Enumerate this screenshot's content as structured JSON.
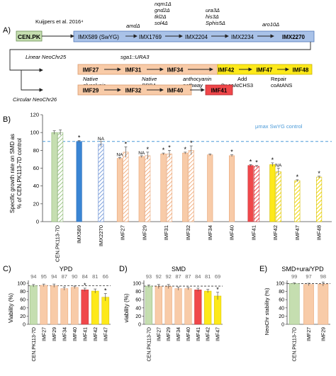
{
  "colors": {
    "green": "#c5deb0",
    "blue": "#a9c2e8",
    "blue_solid": "#3a85d4",
    "peach": "#f8cba8",
    "yellow": "#fde91a",
    "red": "#f0474a",
    "ref_line": "#4a9ad8"
  },
  "panel_a": {
    "label": "A)",
    "strains": {
      "cenpk": "CEN.PK",
      "imx589": "IMX589 (SwYG)",
      "imx1769": "IMX1769",
      "imx2204": "IMX2204",
      "imx2234": "IMX2234",
      "imx2270": "IMX2270",
      "imf27": "IMF27",
      "imf31": "IMF31",
      "imf34": "IMF34",
      "imf42": "IMF42",
      "imf47": "IMF47",
      "imf48": "IMF48",
      "imf29": "IMF29",
      "imf32": "IMF32",
      "imf40": "IMF40",
      "imf41": "IMF41"
    },
    "annotations": {
      "kuijpers": "Kuijpers et al. 2016⁴",
      "amd": "amdΔ",
      "imx2204_deletions": [
        "nqm1Δ",
        "gnd2Δ",
        "tkl2Δ",
        "sol4Δ"
      ],
      "imx2234_deletions": [
        "ura3Δ",
        "his3Δ",
        "Sphis5Δ"
      ],
      "aro10": "aro10Δ",
      "linear": "Linear NeoChr25",
      "sga1": "sga1::URA3",
      "circular": "Circular NeoChr26",
      "native_glycolysis": [
        "Native",
        "glycolysis"
      ],
      "native_ppp": [
        "Native",
        "PPPΔ"
      ],
      "anthocyanin": [
        "anthocyanin",
        "pathway"
      ],
      "add": [
        "Add",
        "8x coAtCHS3"
      ],
      "repair": [
        "Repair",
        "coAtANS"
      ]
    }
  },
  "panel_b": {
    "label": "B)",
    "ylabel": [
      "Specific growth rate on SMD as",
      "% of CEN.PK113-7D control"
    ],
    "ref_label": "μmax SwYG control",
    "ref_value": 90,
    "ylim": [
      0,
      120
    ],
    "yticks": [
      "0",
      "20",
      "40",
      "60",
      "80",
      "100",
      "120"
    ],
    "na": "NA",
    "star": "*"
  },
  "panel_c": {
    "label": "C)",
    "title": "YPD",
    "ylabel": "Viability (%)",
    "yticks": [
      "0",
      "20",
      "40",
      "60",
      "80",
      "100"
    ]
  },
  "panel_d": {
    "label": "D)",
    "title": "SMD",
    "ylabel": "viability (%)",
    "yticks": [
      "0",
      "20",
      "40",
      "60",
      "80",
      "100"
    ]
  },
  "panel_e": {
    "label": "E)",
    "title": "SMD+ura/YPD",
    "ylabel": "NeoChr stability (%)",
    "yticks": [
      "0",
      "20",
      "40",
      "60",
      "80",
      "100"
    ]
  },
  "chart_data": [
    {
      "type": "bar",
      "panel": "B",
      "categories": [
        "CEN.PK113-7D",
        "IMX589",
        "IMX2270",
        "IMF27",
        "IMF29",
        "IMF31",
        "IMF32",
        "IMF34",
        "IMF40",
        "IMF41",
        "IMF42",
        "IMF47",
        "IMF48"
      ],
      "groups": [
        {
          "category": "CEN.PK113-7D",
          "bars": [
            {
              "value": 100,
              "err": 2,
              "color": "green",
              "hatch": false,
              "mark": ""
            },
            {
              "value": 100,
              "err": 3,
              "color": "green",
              "hatch": true,
              "mark": ""
            }
          ]
        },
        {
          "category": "IMX589",
          "bars": [
            {
              "value": 90,
              "err": 1,
              "color": "blue_solid",
              "hatch": false,
              "mark": "*"
            }
          ]
        },
        {
          "category": "IMX2270",
          "bars": [
            {
              "value": 87,
              "err": 3,
              "color": "blue",
              "hatch": true,
              "mark": "NA"
            }
          ]
        },
        {
          "category": "IMF27",
          "bars": [
            {
              "value": 71,
              "err": 1,
              "color": "peach",
              "hatch": false,
              "mark": "NA"
            },
            {
              "value": 78,
              "err": 6,
              "color": "peach",
              "hatch": true,
              "mark": "*"
            }
          ]
        },
        {
          "category": "IMF29",
          "bars": [
            {
              "value": 73,
              "err": 1,
              "color": "peach",
              "hatch": false,
              "mark": "NA"
            },
            {
              "value": 74,
              "err": 4,
              "color": "peach",
              "hatch": true,
              "mark": "*"
            }
          ]
        },
        {
          "category": "IMF31",
          "bars": [
            {
              "value": 76,
              "err": 1,
              "color": "peach",
              "hatch": false,
              "mark": "*"
            },
            {
              "value": 76,
              "err": 4,
              "color": "peach",
              "hatch": true,
              "mark": "*"
            }
          ]
        },
        {
          "category": "IMF32",
          "bars": [
            {
              "value": 77,
              "err": 1,
              "color": "peach",
              "hatch": false,
              "mark": "*"
            },
            {
              "value": 80,
              "err": 5,
              "color": "peach",
              "hatch": true,
              "mark": "*"
            }
          ]
        },
        {
          "category": "IMF34",
          "bars": [
            {
              "value": 75,
              "err": 1,
              "color": "peach",
              "hatch": false,
              "mark": ""
            }
          ]
        },
        {
          "category": "IMF40",
          "bars": [
            {
              "value": 74,
              "err": 1,
              "color": "peach",
              "hatch": false,
              "mark": "*"
            }
          ]
        },
        {
          "category": "IMF41",
          "bars": [
            {
              "value": 63,
              "err": 1,
              "color": "red",
              "hatch": false,
              "mark": "*"
            },
            {
              "value": 62,
              "err": 1,
              "color": "red",
              "hatch": true,
              "mark": "*"
            }
          ]
        },
        {
          "category": "IMF42",
          "bars": [
            {
              "value": 64,
              "err": 2,
              "color": "yellow",
              "hatch": false,
              "mark": "*"
            },
            {
              "value": 56,
              "err": 4,
              "color": "yellow",
              "hatch": true,
              "mark": "NA"
            }
          ]
        },
        {
          "category": "IMF47",
          "bars": [
            {
              "value": 46,
              "err": 1,
              "color": "yellow",
              "hatch": true,
              "mark": "*"
            }
          ]
        },
        {
          "category": "IMF48",
          "bars": [
            {
              "value": 50,
              "err": 1,
              "color": "yellow",
              "hatch": true,
              "mark": "*"
            }
          ]
        }
      ],
      "ylim": [
        0,
        120
      ]
    },
    {
      "type": "bar",
      "panel": "C",
      "title": "YPD",
      "categories": [
        "CEN.PK113-7D",
        "IMF27",
        "IMF29",
        "IMF34",
        "IMF40",
        "IMF41",
        "IMF42",
        "IMF47"
      ],
      "values": [
        94,
        95,
        94,
        87,
        90,
        84,
        81,
        66
      ],
      "errors": [
        3,
        3,
        4,
        4,
        3,
        4,
        5,
        9
      ],
      "colors": [
        "green",
        "peach",
        "peach",
        "peach",
        "peach",
        "red",
        "yellow",
        "yellow"
      ],
      "marks": [
        "",
        "",
        "",
        "",
        "",
        "*",
        "",
        "*"
      ],
      "ylim": [
        0,
        100
      ]
    },
    {
      "type": "bar",
      "panel": "D",
      "title": "SMD",
      "categories": [
        "CEN.PK113-7D",
        "IMF27",
        "IMF29",
        "IMF34",
        "IMF40",
        "IMF41",
        "IMF42",
        "IMF47"
      ],
      "values": [
        93,
        92,
        92,
        87,
        87,
        84,
        81,
        69
      ],
      "errors": [
        3,
        5,
        5,
        4,
        3,
        4,
        4,
        9
      ],
      "colors": [
        "green",
        "peach",
        "peach",
        "peach",
        "peach",
        "red",
        "yellow",
        "yellow"
      ],
      "marks": [
        "",
        "",
        "",
        "",
        "",
        "",
        "",
        "*"
      ],
      "ylim": [
        0,
        100
      ]
    },
    {
      "type": "bar",
      "panel": "E",
      "title": "SMD+ura/YPD",
      "categories": [
        "CEN.PK113-7D",
        "IMF27",
        "IMF29"
      ],
      "values": [
        99,
        97,
        98
      ],
      "errors": [
        2,
        3,
        5
      ],
      "colors": [
        "green",
        "peach",
        "peach"
      ],
      "marks": [
        "",
        "",
        ""
      ],
      "ylim": [
        0,
        100
      ]
    }
  ]
}
